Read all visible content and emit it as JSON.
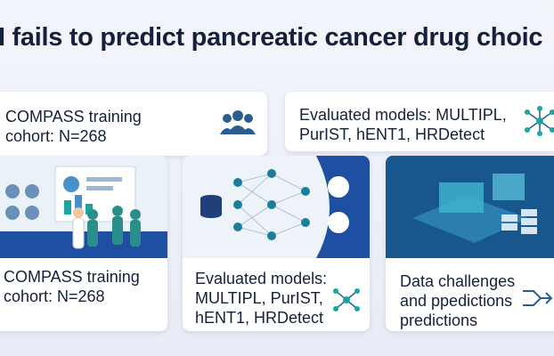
{
  "header": {
    "title": "I fails to predict pancreatic cancer drug choic"
  },
  "top_cards": [
    {
      "text": "COMPASS training cohort: N=268"
    },
    {
      "text": "Evaluated models: MULTIPL, PurIST, hENT1, HRDetect"
    }
  ],
  "bottom_cards": [
    {
      "text": "COMPASS training cohort: N=268"
    },
    {
      "text": "Evaluated models: MULTIPL, PurIST, hENT1, HRDetect"
    },
    {
      "text": "Data challenges and ppedictions predictions"
    }
  ]
}
